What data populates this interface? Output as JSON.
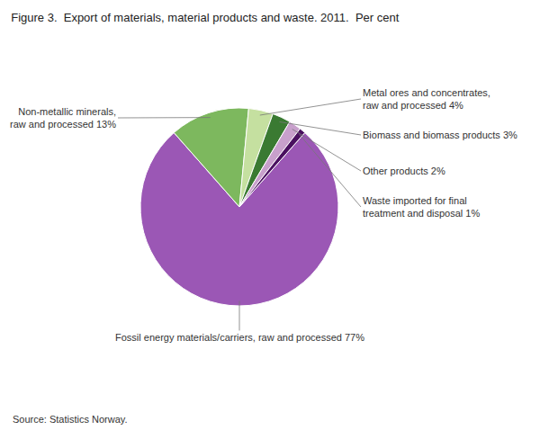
{
  "chart_data": {
    "type": "pie",
    "title": "Figure 3.  Export of materials, material products and waste. 2011.  Per cent",
    "source": "Source: Statistics Norway.",
    "categories": [
      "Fossil energy materials/carriers, raw and processed 77%",
      "Non-metallic minerals,\nraw and processed 13%",
      "Metal ores and concentrates,\nraw and processed 4%",
      "Biomass and biomass products 3%",
      "Other products 2%",
      "Waste imported for final\ntreatment and disposal 1%"
    ],
    "values": [
      77,
      13,
      4,
      3,
      2,
      1
    ],
    "colors": [
      "#9b57b5",
      "#7db85e",
      "#c5e0a0",
      "#3a7a32",
      "#c8a0cc",
      "#4a1060"
    ]
  }
}
